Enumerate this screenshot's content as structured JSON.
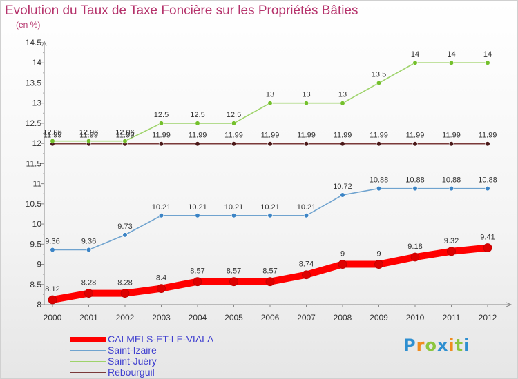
{
  "header": {
    "title": "Evolution du Taux de Taxe Foncière sur les Propriétés Bâties",
    "unit": "(en %)"
  },
  "logo": {
    "letters": [
      {
        "ch": "P",
        "color": "#2e8fd0"
      },
      {
        "ch": "r",
        "color": "#f08c1e"
      },
      {
        "ch": "o",
        "color": "#8cc63f"
      },
      {
        "ch": "x",
        "color": "#2e8fd0"
      },
      {
        "ch": "i",
        "color": "#f08c1e"
      },
      {
        "ch": "t",
        "color": "#8cc63f"
      },
      {
        "ch": "i",
        "color": "#2e8fd0"
      }
    ]
  },
  "chart_data": {
    "type": "line",
    "title": "Evolution du Taux de Taxe Foncière sur les Propriétés Bâties",
    "subtitle": "(en %)",
    "x": [
      2000,
      2001,
      2002,
      2003,
      2004,
      2005,
      2006,
      2007,
      2008,
      2009,
      2010,
      2011,
      2012
    ],
    "ylim": [
      8,
      14.5
    ],
    "yticks": [
      8,
      8.5,
      9,
      9.5,
      10,
      10.5,
      11,
      11.5,
      12,
      12.5,
      13,
      13.5,
      14,
      14.5
    ],
    "grid": false,
    "legend_position": "bottom-left",
    "series": [
      {
        "name": "CALMELS-ET-LE-VIALA",
        "color": "#ff0000",
        "marker": "#dd0000",
        "thick": true,
        "values": [
          8.12,
          8.28,
          8.28,
          8.4,
          8.57,
          8.57,
          8.57,
          8.74,
          9,
          9,
          9.18,
          9.32,
          9.41
        ]
      },
      {
        "name": "Saint-Izaire",
        "color": "#6fa3cf",
        "marker": "#3c84c5",
        "thick": false,
        "values": [
          9.36,
          9.36,
          9.73,
          10.21,
          10.21,
          10.21,
          10.21,
          10.21,
          10.72,
          10.88,
          10.88,
          10.88,
          10.88
        ]
      },
      {
        "name": "Saint-Juéry",
        "color": "#9ed36a",
        "marker": "#74c02c",
        "thick": false,
        "values": [
          12.06,
          12.06,
          12.06,
          12.5,
          12.5,
          12.5,
          13,
          13,
          13,
          13.5,
          14,
          14,
          14
        ]
      },
      {
        "name": "Rebourguil",
        "color": "#7a3a3a",
        "marker": "#4a1818",
        "thick": false,
        "values": [
          11.99,
          11.99,
          11.99,
          11.99,
          11.99,
          11.99,
          11.99,
          11.99,
          11.99,
          11.99,
          11.99,
          11.99,
          11.99
        ]
      }
    ]
  }
}
